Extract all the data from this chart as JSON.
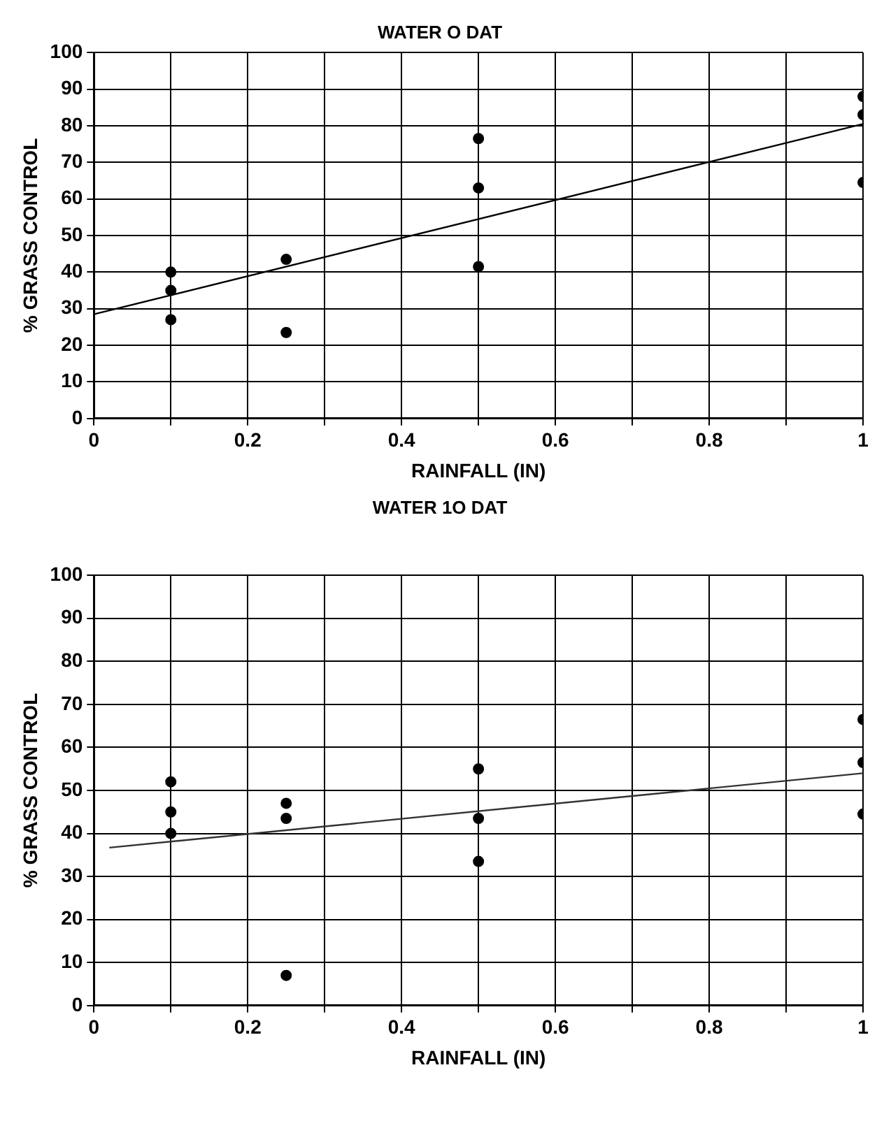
{
  "chart_data": [
    {
      "type": "scatter",
      "title": "WATER O DAT",
      "xlabel": "RAINFALL (IN)",
      "ylabel": "% GRASS CONTROL",
      "xlim": [
        0,
        1
      ],
      "ylim": [
        0,
        100
      ],
      "xticks": [
        0,
        {
          "value": 0.1,
          "label": null
        },
        0.2,
        {
          "value": 0.3,
          "label": null
        },
        0.4,
        {
          "value": 0.5,
          "label": null
        },
        0.6,
        {
          "value": 0.7,
          "label": null
        },
        0.8,
        {
          "value": 0.9,
          "label": null
        },
        1
      ],
      "yticks": [
        0,
        10,
        20,
        30,
        40,
        50,
        60,
        70,
        80,
        90,
        100
      ],
      "grid": true,
      "legend": false,
      "series": [
        {
          "marker": "circle",
          "color": "#000000",
          "x": [
            0.1,
            0.1,
            0.1,
            0.25,
            0.25,
            0.5,
            0.5,
            0.5,
            1,
            1,
            1
          ],
          "values": [
            40,
            35,
            27,
            43.5,
            23.5,
            76.5,
            63,
            41.5,
            88,
            83,
            64.5
          ]
        },
        {
          "type": "line",
          "marker": "none",
          "color": "#000000",
          "x": [
            0,
            1
          ],
          "values": [
            28.5,
            80.5
          ]
        }
      ]
    },
    {
      "type": "scatter",
      "title": "WATER 1O DAT",
      "xlabel": "RAINFALL (IN)",
      "ylabel": "% GRASS CONTROL",
      "xlim": [
        0,
        1
      ],
      "ylim": [
        0,
        100
      ],
      "xticks": [
        0,
        {
          "value": 0.1,
          "label": null
        },
        0.2,
        {
          "value": 0.3,
          "label": null
        },
        0.4,
        {
          "value": 0.5,
          "label": null
        },
        0.6,
        {
          "value": 0.7,
          "label": null
        },
        0.8,
        {
          "value": 0.9,
          "label": null
        },
        1
      ],
      "yticks": [
        0,
        10,
        20,
        30,
        40,
        50,
        60,
        70,
        80,
        90,
        100
      ],
      "grid": true,
      "legend": false,
      "series": [
        {
          "marker": "circle",
          "color": "#000000",
          "x": [
            0.1,
            0.1,
            0.1,
            0.25,
            0.25,
            0.25,
            0.5,
            0.5,
            0.5,
            1,
            1,
            1
          ],
          "values": [
            52,
            45,
            40,
            47,
            43.5,
            7,
            55,
            43.5,
            33.5,
            66.5,
            56.5,
            44.5
          ]
        },
        {
          "type": "line",
          "marker": "none",
          "color": "#333333",
          "x": [
            0.02,
            1
          ],
          "values": [
            36.7,
            54
          ]
        }
      ]
    }
  ]
}
